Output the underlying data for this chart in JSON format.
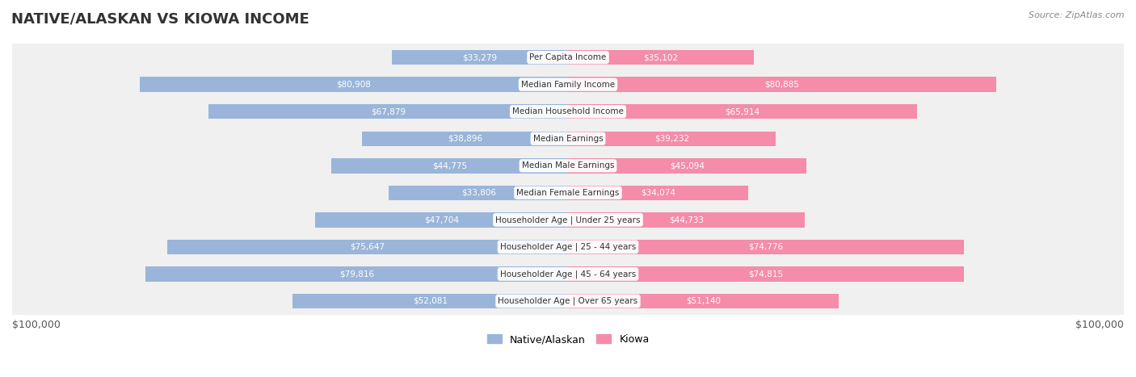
{
  "title": "NATIVE/ALASKAN VS KIOWA INCOME",
  "source": "Source: ZipAtlas.com",
  "categories": [
    "Per Capita Income",
    "Median Family Income",
    "Median Household Income",
    "Median Earnings",
    "Median Male Earnings",
    "Median Female Earnings",
    "Householder Age | Under 25 years",
    "Householder Age | 25 - 44 years",
    "Householder Age | 45 - 64 years",
    "Householder Age | Over 65 years"
  ],
  "native_values": [
    33279,
    80908,
    67879,
    38896,
    44775,
    33806,
    47704,
    75647,
    79816,
    52081
  ],
  "kiowa_values": [
    35102,
    80885,
    65914,
    39232,
    45094,
    34074,
    44733,
    74776,
    74815,
    51140
  ],
  "native_color": "#9ab5d9",
  "kiowa_color": "#f48caa",
  "native_label_color": "#555555",
  "kiowa_label_color": "#555555",
  "native_label_color_inside": "#ffffff",
  "kiowa_label_color_inside": "#ffffff",
  "max_value": 100000,
  "bg_row_color": "#f0f0f0",
  "bg_color": "#ffffff",
  "bar_height": 0.55,
  "xlabel_left": "$100,000",
  "xlabel_right": "$100,000",
  "legend_native": "Native/Alaskan",
  "legend_kiowa": "Kiowa"
}
